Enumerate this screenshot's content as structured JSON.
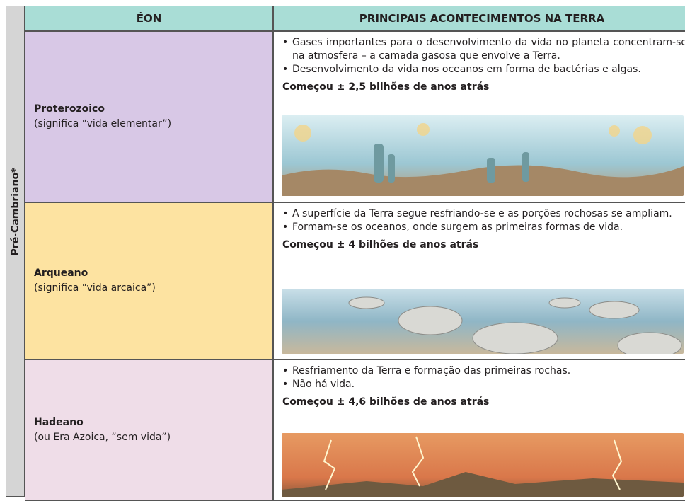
{
  "table": {
    "side_label": "Pré-Cambriano*",
    "headers": [
      "ÉON",
      "PRINCIPAIS ACONTECIMENTOS NA TERRA"
    ],
    "rows": [
      {
        "eon": "Proterozoico",
        "meaning": "(significa “vida elementar”)",
        "bullets": [
          "Gases importantes para o desenvolvimento da vida no planeta concentram-se na atmosfera – a camada gasosa que envolve a Terra.",
          "Desenvolvimento da vida nos oceanos em forma de bactérias e algas."
        ],
        "began": "Começou ± 2,5 bilhões de anos atrás"
      },
      {
        "eon": "Arqueano",
        "meaning": "(significa “vida arcaica”)",
        "bullets": [
          "A superfície da Terra segue resfriando-se e as porções rochosas se ampliam.",
          "Formam-se os oceanos, onde surgem as primeiras formas de vida."
        ],
        "began": "Começou ± 4 bilhões de anos atrás"
      },
      {
        "eon": "Hadeano",
        "meaning": "(ou Era Azoica, “sem vida”)",
        "bullets": [
          "Resfriamento da Terra e formação das primeiras rochas.",
          "Não há vida."
        ],
        "began": "Começou ± 4,6 bilhões de anos atrás"
      }
    ]
  }
}
